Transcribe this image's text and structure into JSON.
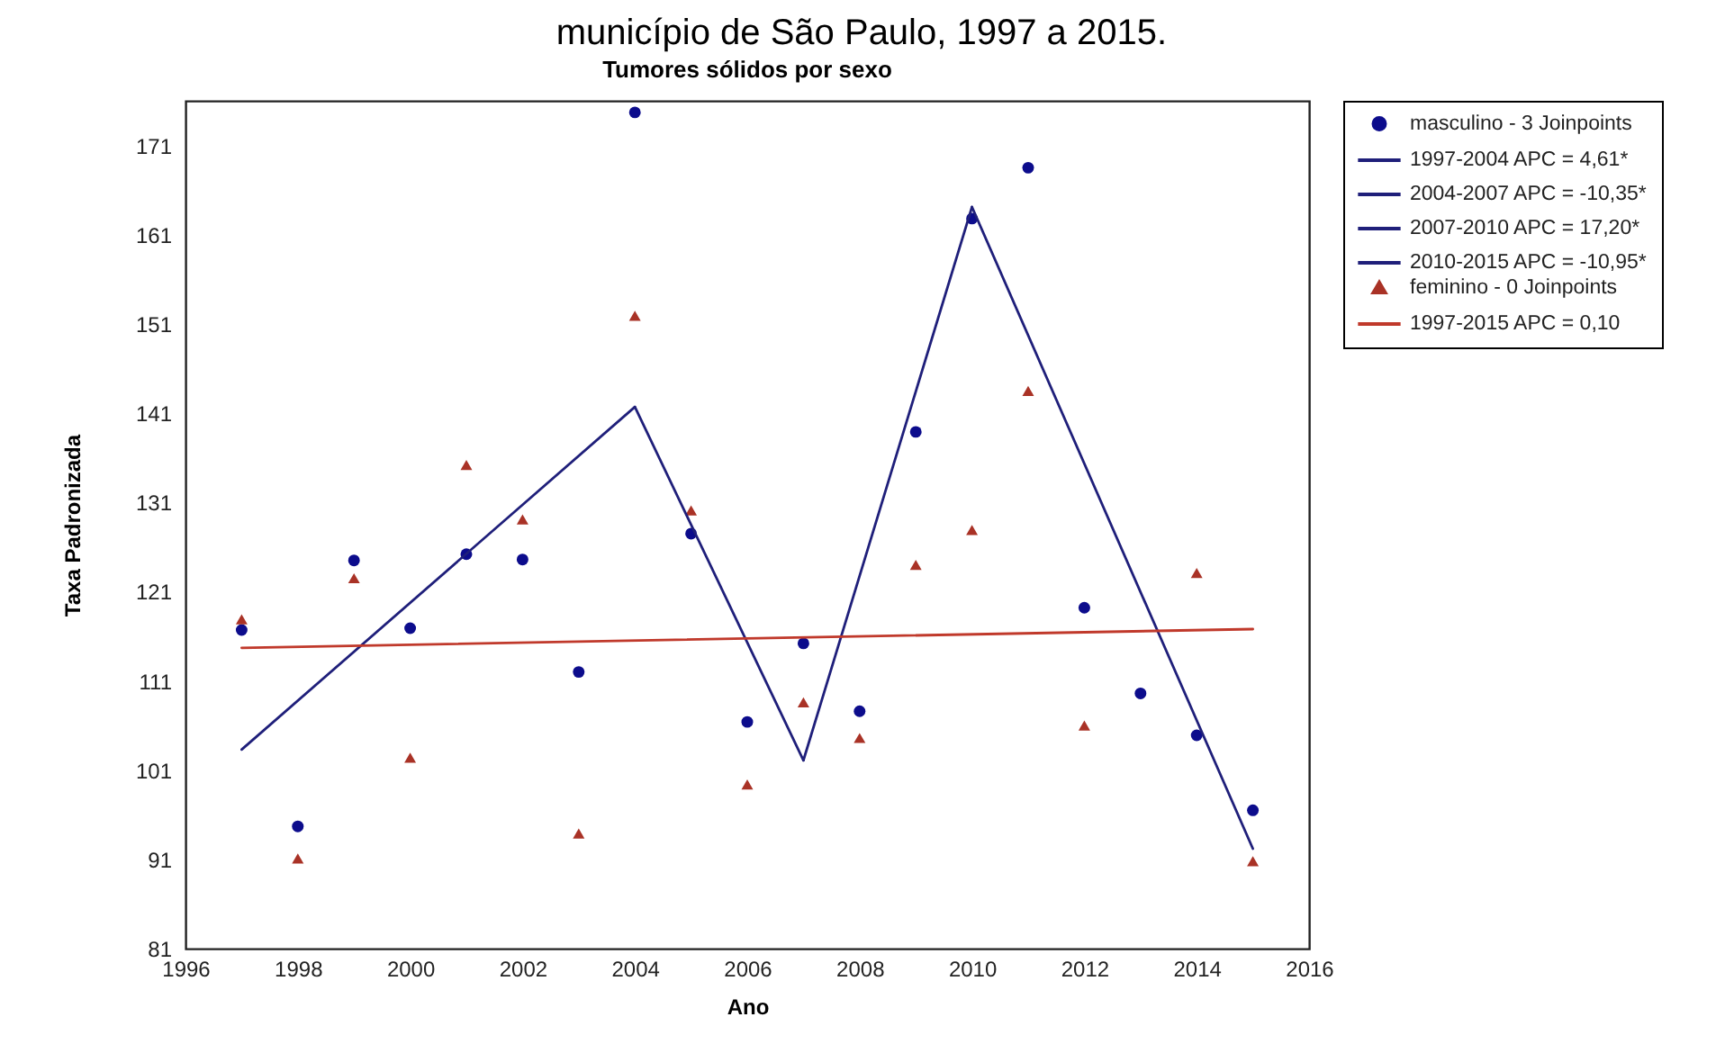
{
  "chart_data": {
    "type": "scatter",
    "title": "Tumores sólidos por sexo",
    "xlabel": "Ano",
    "ylabel": "Taxa Padronizada",
    "annotations": [
      "município de São Paulo, 1997 a 2015."
    ],
    "xlim": [
      1996,
      2016
    ],
    "xticks": [
      1996,
      1998,
      2000,
      2002,
      2004,
      2006,
      2008,
      2010,
      2012,
      2014,
      2016
    ],
    "ylim": [
      81,
      176
    ],
    "yticks": [
      81,
      91,
      101,
      111,
      121,
      131,
      141,
      151,
      161,
      171
    ],
    "legend": "right",
    "series": [
      {
        "name": "masculino - 3 Joinpoints",
        "marker": "circle",
        "color": "#0c0c8c",
        "x": [
          1997,
          1998,
          1999,
          2000,
          2001,
          2002,
          2003,
          2004,
          2005,
          2006,
          2007,
          2008,
          2009,
          2010,
          2011,
          2012,
          2013,
          2014,
          2015
        ],
        "values": [
          116.7,
          94.7,
          124.5,
          116.9,
          125.2,
          124.6,
          112.0,
          174.7,
          127.5,
          106.4,
          115.2,
          107.6,
          138.9,
          162.8,
          168.5,
          119.2,
          109.6,
          104.9,
          96.5
        ]
      },
      {
        "name": "1997-2004 APC = 4,61*",
        "type": "line",
        "color": "#1f1f7a",
        "x": [
          1997,
          2004
        ],
        "values": [
          103.3,
          141.7
        ]
      },
      {
        "name": "2004-2007 APC = -10,35*",
        "type": "line",
        "color": "#1f1f7a",
        "x": [
          2004,
          2007
        ],
        "values": [
          141.7,
          102.1
        ]
      },
      {
        "name": "2007-2010 APC = 17,20*",
        "type": "line",
        "color": "#1f1f7a",
        "x": [
          2007,
          2010
        ],
        "values": [
          102.1,
          164.1
        ]
      },
      {
        "name": "2010-2015 APC = -10,95*",
        "type": "line",
        "color": "#1f1f7a",
        "x": [
          2010,
          2015
        ],
        "values": [
          164.1,
          92.2
        ]
      },
      {
        "name": "feminino - 0 Joinpoints",
        "marker": "triangle",
        "color": "#a93226",
        "x": [
          1997,
          1998,
          1999,
          2000,
          2001,
          2002,
          2003,
          2004,
          2005,
          2006,
          2007,
          2008,
          2009,
          2010,
          2011,
          2012,
          2013,
          2014,
          2015
        ],
        "values": [
          117.9,
          91.1,
          122.5,
          102.4,
          135.2,
          129.1,
          93.9,
          151.9,
          130.1,
          99.4,
          108.6,
          104.6,
          124.0,
          127.9,
          143.5,
          106.0,
          null,
          123.1,
          90.8
        ]
      },
      {
        "name": "1997-2015 APC = 0,10",
        "type": "line",
        "color": "#c0392b",
        "x": [
          1997,
          2015
        ],
        "values": [
          114.7,
          116.8
        ]
      }
    ]
  }
}
